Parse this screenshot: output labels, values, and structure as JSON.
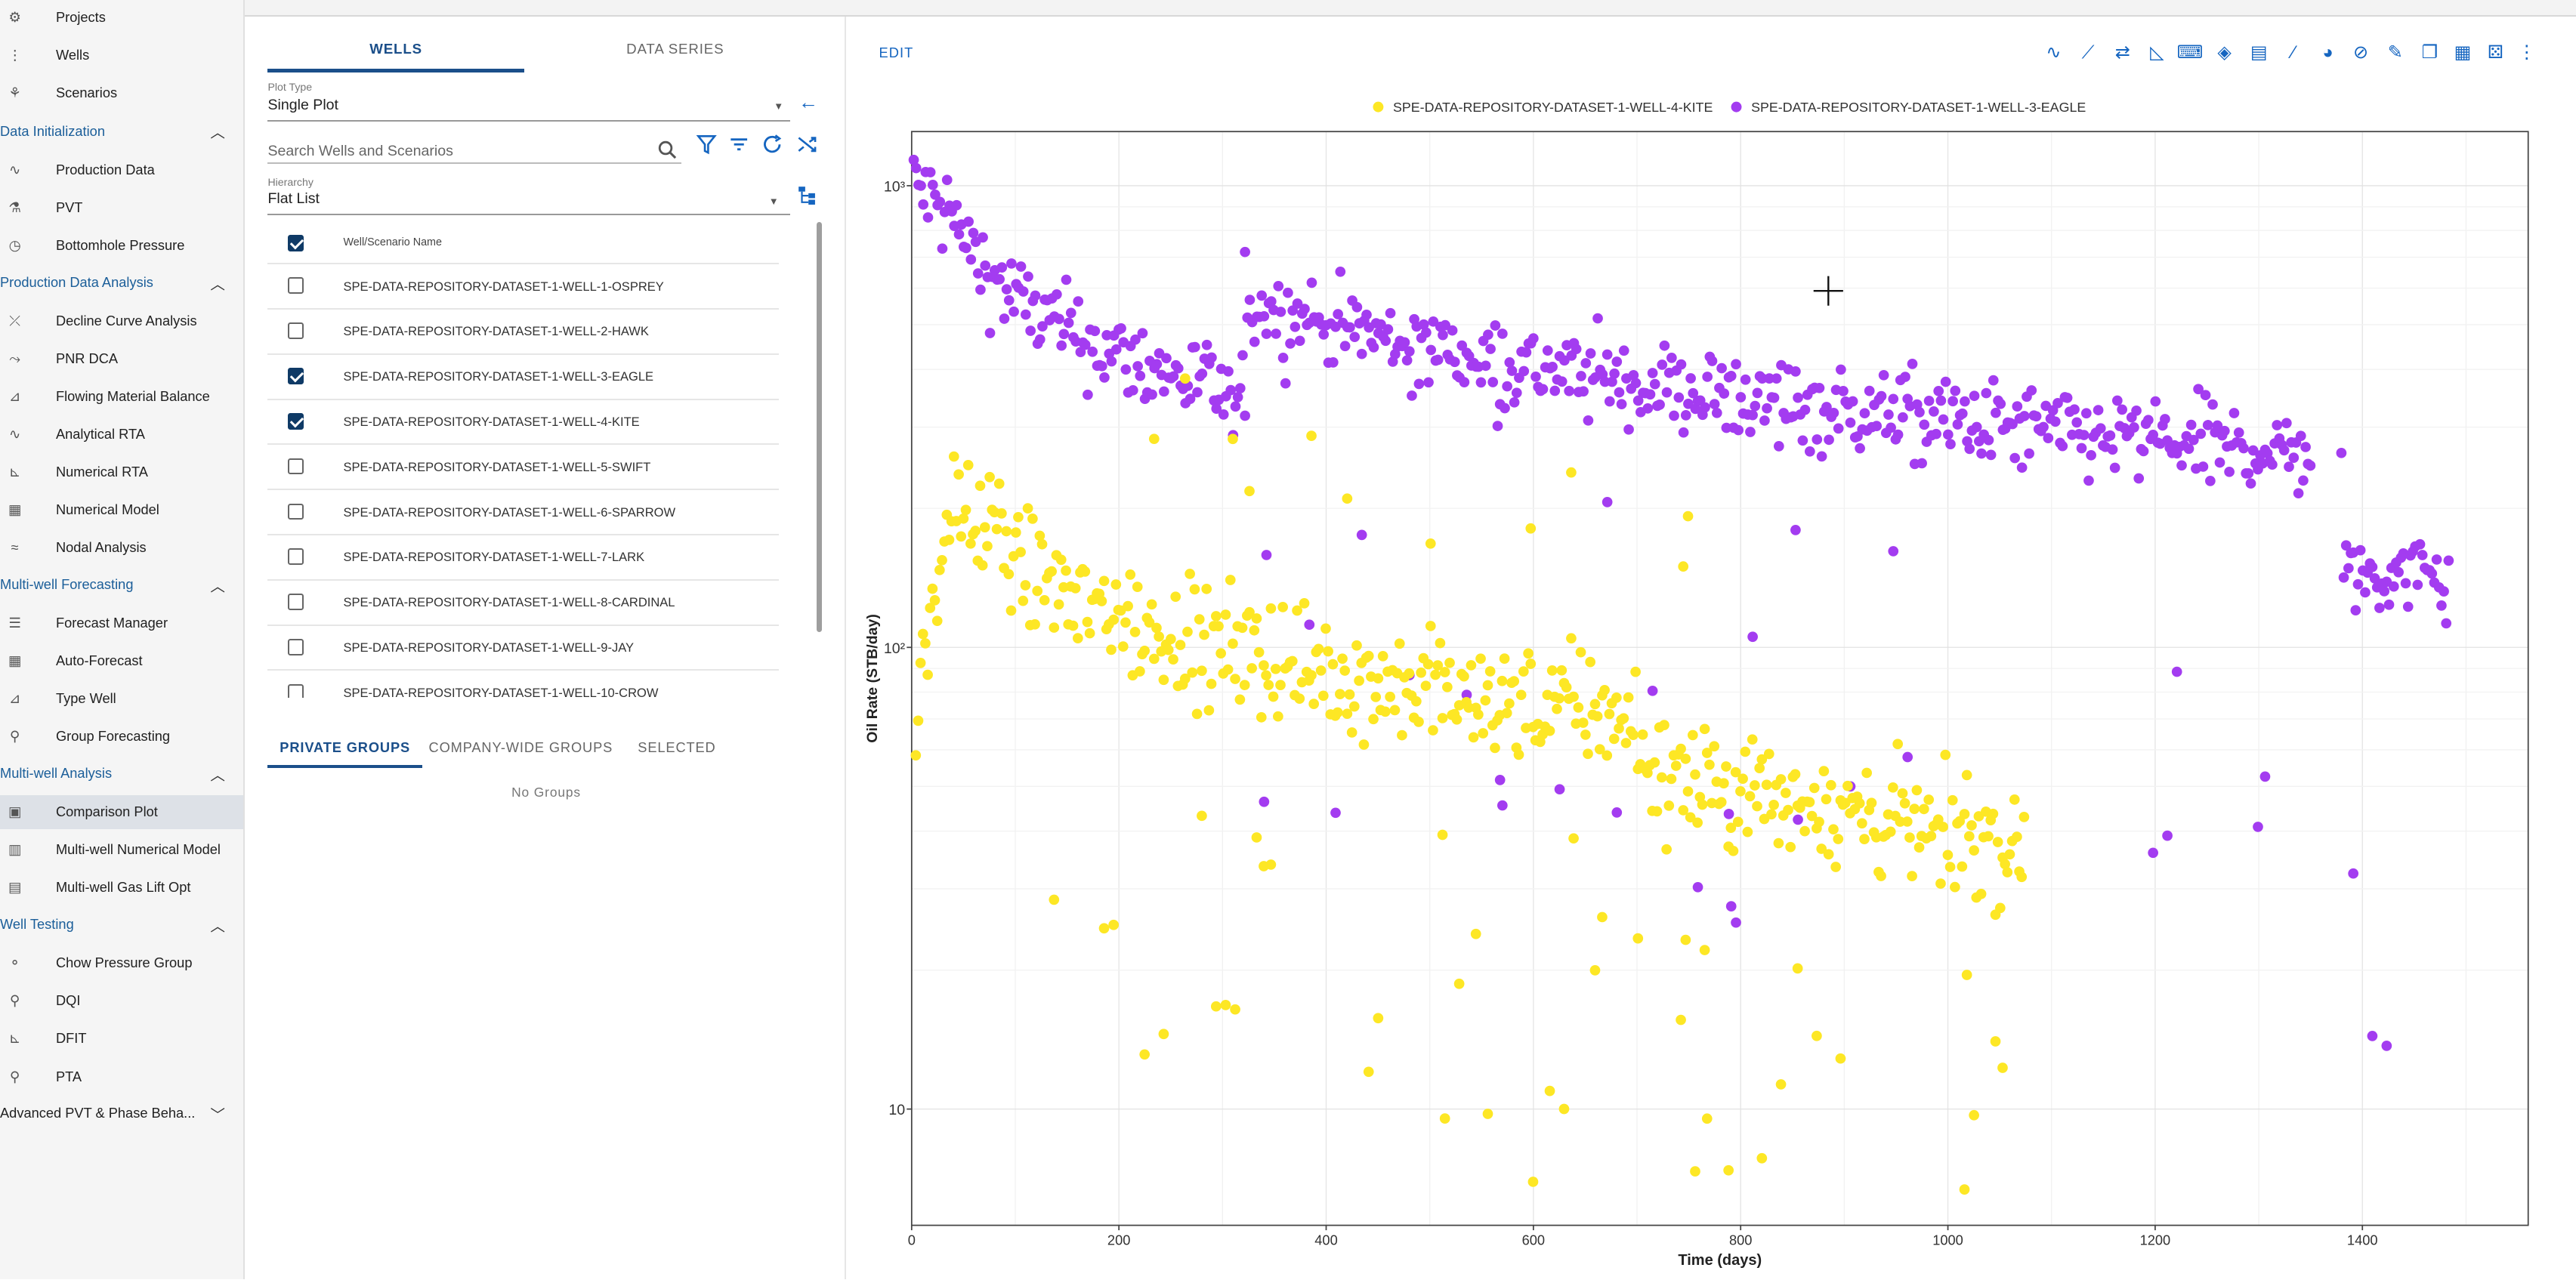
{
  "sidebar": {
    "items": [
      {
        "label": "Projects",
        "icon": "projects-icon"
      },
      {
        "label": "Wells",
        "icon": "wells-grid-icon"
      },
      {
        "label": "Scenarios",
        "icon": "scenarios-tree-icon"
      }
    ],
    "sections": [
      {
        "title": "Data Initialization",
        "items": [
          "Production Data",
          "PVT",
          "Bottomhole Pressure"
        ]
      },
      {
        "title": "Production Data Analysis",
        "items": [
          "Decline Curve Analysis",
          "PNR DCA",
          "Flowing Material Balance",
          "Analytical RTA",
          "Numerical RTA",
          "Numerical Model",
          "Nodal Analysis"
        ]
      },
      {
        "title": "Multi-well Forecasting",
        "items": [
          "Forecast Manager",
          "Auto-Forecast",
          "Type Well",
          "Group Forecasting"
        ]
      },
      {
        "title": "Multi-well Analysis",
        "items": [
          "Comparison Plot",
          "Multi-well Numerical Model",
          "Multi-well Gas Lift Opt"
        ]
      },
      {
        "title": "Well Testing",
        "items": [
          "Chow Pressure Group",
          "DQI",
          "DFIT",
          "PTA"
        ]
      },
      {
        "title": "Advanced PVT & Phase Beha..."
      }
    ],
    "active_item": "Comparison Plot"
  },
  "wells_panel": {
    "tabs": [
      "WELLS",
      "DATA SERIES"
    ],
    "plot_type_label": "Plot Type",
    "plot_type_value": "Single Plot",
    "search_placeholder": "Search Wells and Scenarios",
    "hierarchy_label": "Hierarchy",
    "hierarchy_value": "Flat List",
    "column_header": "Well/Scenario Name",
    "rows": [
      {
        "name": "SPE-DATA-REPOSITORY-DATASET-1-WELL-1-OSPREY",
        "checked": false
      },
      {
        "name": "SPE-DATA-REPOSITORY-DATASET-1-WELL-2-HAWK",
        "checked": false
      },
      {
        "name": "SPE-DATA-REPOSITORY-DATASET-1-WELL-3-EAGLE",
        "checked": true
      },
      {
        "name": "SPE-DATA-REPOSITORY-DATASET-1-WELL-4-KITE",
        "checked": true
      },
      {
        "name": "SPE-DATA-REPOSITORY-DATASET-1-WELL-5-SWIFT",
        "checked": false
      },
      {
        "name": "SPE-DATA-REPOSITORY-DATASET-1-WELL-6-SPARROW",
        "checked": false
      },
      {
        "name": "SPE-DATA-REPOSITORY-DATASET-1-WELL-7-LARK",
        "checked": false
      },
      {
        "name": "SPE-DATA-REPOSITORY-DATASET-1-WELL-8-CARDINAL",
        "checked": false
      },
      {
        "name": "SPE-DATA-REPOSITORY-DATASET-1-WELL-9-JAY",
        "checked": false
      },
      {
        "name": "SPE-DATA-REPOSITORY-DATASET-1-WELL-10-CROW",
        "checked": false
      }
    ],
    "group_tabs": [
      "PRIVATE GROUPS",
      "COMPANY-WIDE GROUPS",
      "SELECTED"
    ],
    "no_groups": "No Groups"
  },
  "plot_panel": {
    "edit_label": "EDIT",
    "toolbar_icons": [
      "wave-icon",
      "line-tool-icon",
      "swap-icon",
      "area-chart-icon",
      "keyboard-icon",
      "paint-bucket-icon",
      "document-icon",
      "pen-icon",
      "palette-icon",
      "hide-icon",
      "edit-note-icon",
      "copy-icon",
      "table-icon",
      "dice-icon",
      "more-vert-icon"
    ]
  },
  "chart_data": {
    "type": "scatter",
    "title": "",
    "xlabel": "Time (days)",
    "ylabel": "Oil Rate (STB/day)",
    "xlim": [
      0,
      1560
    ],
    "ylim": [
      5.6,
      1310
    ],
    "yscale": "log",
    "x_ticks": [
      "0",
      "200",
      "400",
      "600",
      "800",
      "1000",
      "1200",
      "1400"
    ],
    "y_ticks": [
      "10",
      "10²",
      "10³"
    ],
    "grid": true,
    "legend": "top-center",
    "series": [
      {
        "name": "SPE-DATA-REPOSITORY-DATASET-1-WELL-4-KITE",
        "color": "#fde725"
      },
      {
        "name": "SPE-DATA-REPOSITORY-DATASET-1-WELL-3-EAGLE",
        "color": "#a33cf0"
      }
    ]
  }
}
